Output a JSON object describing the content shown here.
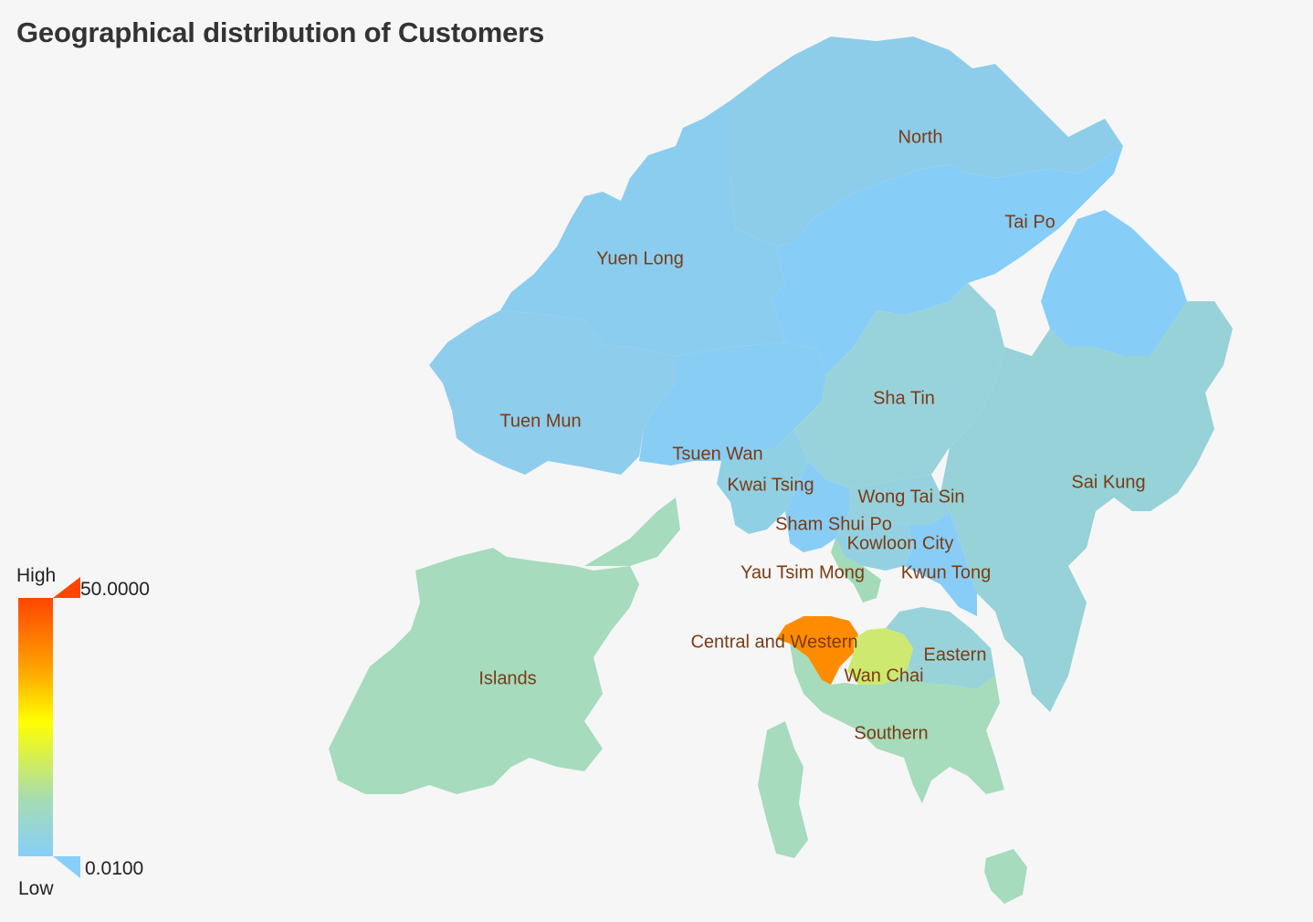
{
  "title": "Geographical distribution of Customers",
  "legend": {
    "high_label": "High",
    "low_label": "Low",
    "max_value": "50.0000",
    "min_value": "0.0100",
    "gradient": [
      "#ff4500",
      "#ffa500",
      "#ffff00",
      "#a6dcb3",
      "#87cefa"
    ]
  },
  "label_color": "#7a3b14",
  "regions": [
    {
      "name": "North",
      "color": "#8dcdea"
    },
    {
      "name": "Tai Po",
      "color": "#86cdf8"
    },
    {
      "name": "Yuen Long",
      "color": "#8bcdee"
    },
    {
      "name": "Tuen Mun",
      "color": "#8fcdec"
    },
    {
      "name": "Sha Tin",
      "color": "#98d3dc"
    },
    {
      "name": "Sai Kung",
      "color": "#96d2d8"
    },
    {
      "name": "Tsuen Wan",
      "color": "#88cdf4"
    },
    {
      "name": "Kwai Tsing",
      "color": "#90d0e4"
    },
    {
      "name": "Wong Tai Sin",
      "color": "#95d1de"
    },
    {
      "name": "Sham Shui Po",
      "color": "#88cdf6"
    },
    {
      "name": "Kowloon City",
      "color": "#93d1e2"
    },
    {
      "name": "Yau Tsim Mong",
      "color": "#a3dab8"
    },
    {
      "name": "Kwun Tong",
      "color": "#88cdf7"
    },
    {
      "name": "Central and Western",
      "color": "#ff8c00"
    },
    {
      "name": "Eastern",
      "color": "#97d3d8"
    },
    {
      "name": "Wan Chai",
      "color": "#cde970"
    },
    {
      "name": "Islands",
      "color": "#a6dbbd"
    },
    {
      "name": "Southern",
      "color": "#a6dbbb"
    }
  ]
}
